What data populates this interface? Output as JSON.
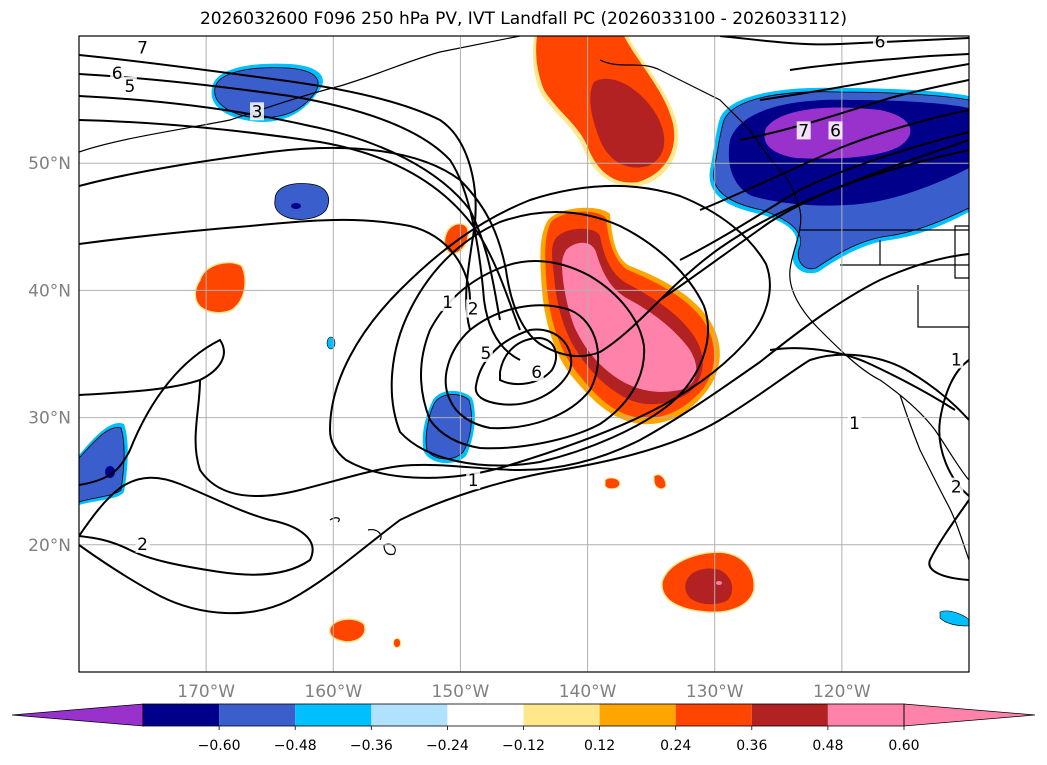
{
  "chart_data": {
    "type": "heatmap",
    "title": "2026032600 F096 250 hPa PV, IVT Landfall PC (2026033100 - 2026033112)",
    "lon_range": [
      -180,
      -110
    ],
    "lat_range": [
      10,
      60
    ],
    "lon_ticks": [
      "170°W",
      "160°W",
      "150°W",
      "140°W",
      "130°W",
      "120°W"
    ],
    "lon_tick_values": [
      -170,
      -160,
      -150,
      -140,
      -130,
      -120
    ],
    "lat_ticks": [
      "50°N",
      "40°N",
      "30°N",
      "20°N"
    ],
    "lat_tick_values": [
      50,
      40,
      30,
      20
    ],
    "grid": true,
    "colorbar": {
      "orientation": "horizontal",
      "position": "bottom",
      "extend": "both",
      "tick_labels": [
        "−0.60",
        "−0.48",
        "−0.36",
        "−0.24",
        "−0.12",
        "0.12",
        "0.24",
        "0.36",
        "0.48",
        "0.60"
      ],
      "levels": [
        -0.6,
        -0.48,
        -0.36,
        -0.24,
        -0.12,
        0.12,
        0.24,
        0.36,
        0.48,
        0.6
      ],
      "colors": [
        "#9932CC",
        "#00008B",
        "#3A5FCD",
        "#00BFFF",
        "#B0E2FF",
        "#FFFFFF",
        "#FFE88C",
        "#FFA500",
        "#FF4500",
        "#B22222",
        "#FF82AB",
        "#FF82AB"
      ]
    },
    "pv_contour_labels": [
      {
        "text": "7",
        "lon": -175,
        "lat": 59
      },
      {
        "text": "6",
        "lon": -177,
        "lat": 57
      },
      {
        "text": "5",
        "lon": -176,
        "lat": 56
      },
      {
        "text": "3",
        "lon": -166,
        "lat": 54
      },
      {
        "text": "1",
        "lon": -151,
        "lat": 39
      },
      {
        "text": "2",
        "lon": -149,
        "lat": 38.5
      },
      {
        "text": "5",
        "lon": -148,
        "lat": 35
      },
      {
        "text": "6",
        "lon": -144,
        "lat": 33.5
      },
      {
        "text": "1",
        "lon": -149,
        "lat": 25
      },
      {
        "text": "2",
        "lon": -175,
        "lat": 20
      },
      {
        "text": "7",
        "lon": -123,
        "lat": 52.5
      },
      {
        "text": "6",
        "lon": -120.5,
        "lat": 52.5
      },
      {
        "text": "6",
        "lon": -117,
        "lat": 59.5
      },
      {
        "text": "1",
        "lon": -119,
        "lat": 29.5
      },
      {
        "text": "1",
        "lon": -111,
        "lat": 34.5
      },
      {
        "text": "2",
        "lon": -111,
        "lat": 24.5
      }
    ]
  }
}
